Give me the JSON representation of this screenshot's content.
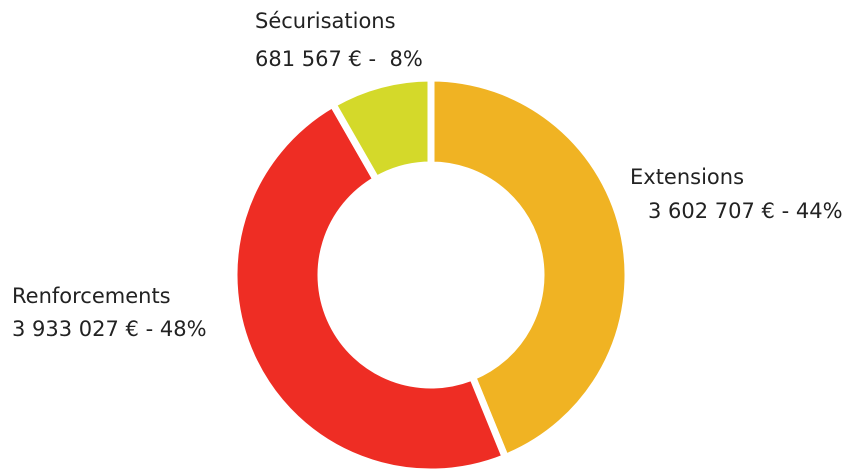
{
  "chart_data": {
    "type": "donut",
    "categories": [
      "Extensions",
      "Renforcements",
      "Sécurisations"
    ],
    "values": [
      3602707,
      3933027,
      681567
    ],
    "value_labels": [
      "3 602 707 € - 44%",
      "3 933 027 € - 48%",
      "681 567 € -  8%"
    ],
    "colors": [
      "#f0b323",
      "#ee2d24",
      "#d4d92a"
    ]
  }
}
